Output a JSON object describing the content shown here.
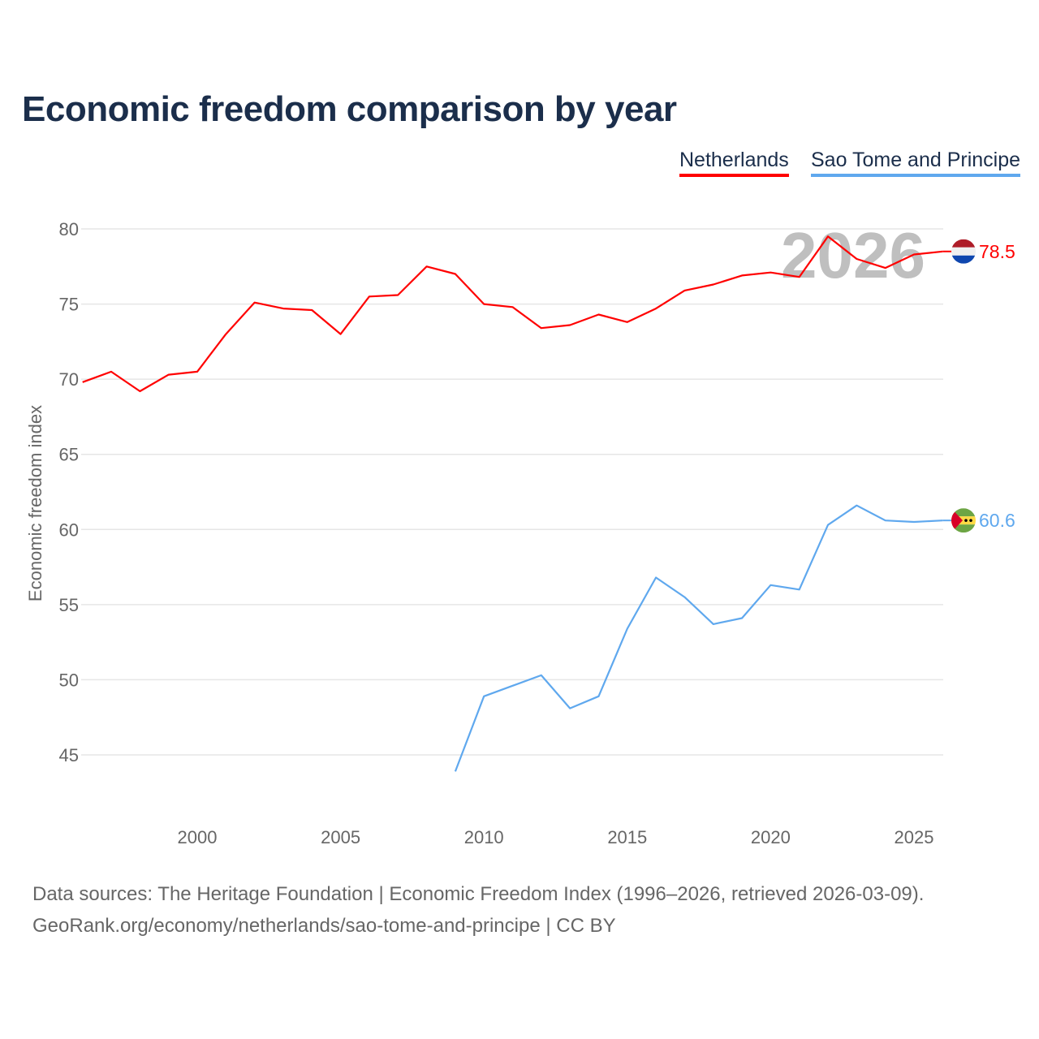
{
  "title": "Economic freedom comparison by year",
  "legend": [
    "Netherlands",
    "Sao Tome and Principe"
  ],
  "sources": {
    "line1": "Data sources: The Heritage Foundation | Economic Freedom Index (1996–2026, retrieved 2026-03-09).",
    "line2": "GeoRank.org/economy/netherlands/sao-tome-and-principe | CC BY"
  },
  "chart_data": {
    "type": "line",
    "title": "Economic freedom comparison by year",
    "xlabel": "",
    "ylabel": "Economic freedom index",
    "xlim": [
      1996,
      2026
    ],
    "ylim": [
      41,
      82
    ],
    "xticks": [
      2000,
      2005,
      2010,
      2015,
      2020,
      2025
    ],
    "yticks": [
      45,
      50,
      55,
      60,
      65,
      70,
      75,
      80
    ],
    "grid": true,
    "watermark_year": "2026",
    "series": [
      {
        "name": "Netherlands",
        "color": "#ff0000",
        "end_label": "78.5",
        "x": [
          1996,
          1997,
          1998,
          1999,
          2000,
          2001,
          2002,
          2003,
          2004,
          2005,
          2006,
          2007,
          2008,
          2009,
          2010,
          2011,
          2012,
          2013,
          2014,
          2015,
          2016,
          2017,
          2018,
          2019,
          2020,
          2021,
          2022,
          2023,
          2024,
          2025,
          2026
        ],
        "values": [
          69.8,
          70.5,
          69.2,
          70.3,
          70.5,
          73.0,
          75.1,
          74.7,
          74.6,
          73.0,
          75.5,
          75.6,
          77.5,
          77.0,
          75.0,
          74.8,
          73.4,
          73.6,
          74.3,
          73.8,
          74.7,
          75.9,
          76.3,
          76.9,
          77.1,
          76.8,
          79.5,
          78.0,
          77.4,
          78.3,
          78.5
        ]
      },
      {
        "name": "Sao Tome and Principe",
        "color": "#5fa8ee",
        "end_label": "60.6",
        "x": [
          2009,
          2010,
          2011,
          2012,
          2013,
          2014,
          2015,
          2016,
          2017,
          2018,
          2019,
          2020,
          2021,
          2022,
          2023,
          2024,
          2025,
          2026
        ],
        "values": [
          43.9,
          48.9,
          49.6,
          50.3,
          48.1,
          48.9,
          53.4,
          56.8,
          55.5,
          53.7,
          54.1,
          56.3,
          56.0,
          60.3,
          61.6,
          60.6,
          60.5,
          60.6
        ]
      }
    ]
  }
}
